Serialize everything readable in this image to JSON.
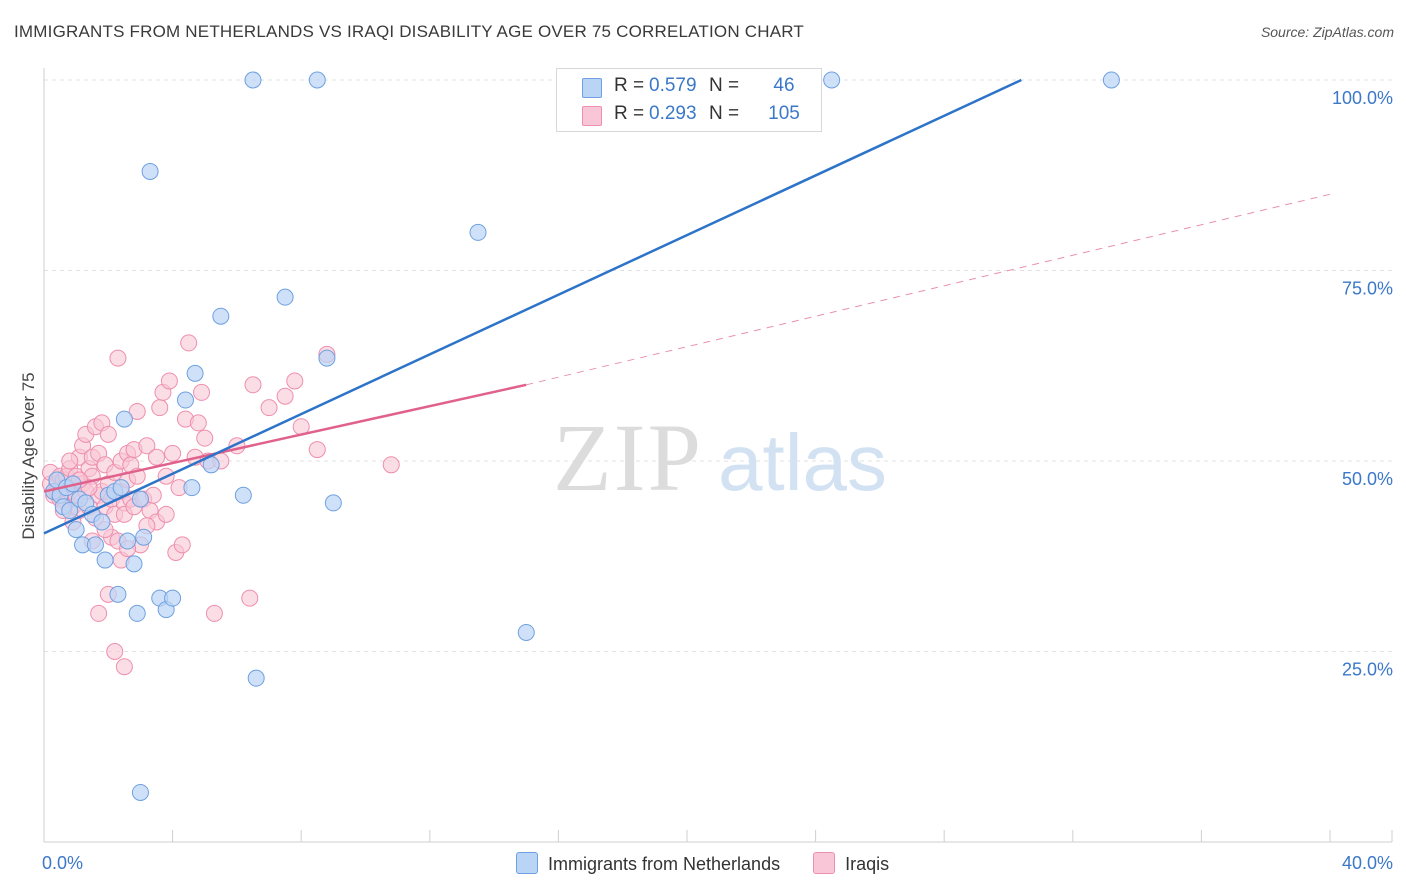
{
  "title": "IMMIGRANTS FROM NETHERLANDS VS IRAQI DISABILITY AGE OVER 75 CORRELATION CHART",
  "source": "Source: ZipAtlas.com",
  "watermark": {
    "zip": "ZIP",
    "atlas": "atlas"
  },
  "colors": {
    "blue_fill": "#bad4f5",
    "blue_stroke": "#6fa0e0",
    "blue_line": "#2d74c9",
    "pink_fill": "#f8c6d6",
    "pink_stroke": "#ee8fae",
    "pink_line": "#e0628c",
    "axis_text": "#3b78c8",
    "grid": "#e2e2e2"
  },
  "legend_top": [
    {
      "r_label": "R =",
      "r_value": "0.579",
      "n_label": "N =",
      "n_value": "46",
      "color": "#bad4f5",
      "border": "#6fa0e0"
    },
    {
      "r_label": "R =",
      "r_value": "0.293",
      "n_label": "N =",
      "n_value": "105",
      "color": "#f8c6d6",
      "border": "#ee8fae"
    }
  ],
  "legend_bottom": [
    {
      "label": "Immigrants from Netherlands",
      "color": "#bad4f5",
      "border": "#6fa0e0"
    },
    {
      "label": "Iraqis",
      "color": "#f8c6d6",
      "border": "#ee8fae"
    }
  ],
  "chart_data": {
    "type": "scatter",
    "title": "IMMIGRANTS FROM NETHERLANDS VS IRAQI DISABILITY AGE OVER 75 CORRELATION CHART",
    "xlabel": "",
    "ylabel": "Disability Age Over 75",
    "xlim": [
      0,
      40
    ],
    "ylim": [
      0,
      100
    ],
    "x_tick_labels": [
      "0.0%",
      "40.0%"
    ],
    "y_tick_labels": [
      "25.0%",
      "50.0%",
      "75.0%",
      "100.0%"
    ],
    "y_ticks": [
      25,
      50,
      75,
      100
    ],
    "grid": true,
    "series": [
      {
        "name": "Immigrants from Netherlands",
        "color": "#bad4f5",
        "points": [
          [
            0.3,
            46.0
          ],
          [
            0.4,
            47.5
          ],
          [
            0.5,
            45.5
          ],
          [
            0.6,
            44.0
          ],
          [
            0.7,
            46.5
          ],
          [
            0.8,
            43.5
          ],
          [
            0.9,
            47.0
          ],
          [
            1.0,
            41.0
          ],
          [
            1.1,
            45.0
          ],
          [
            1.2,
            39.0
          ],
          [
            1.3,
            44.5
          ],
          [
            1.5,
            43.0
          ],
          [
            1.6,
            39.0
          ],
          [
            1.8,
            42.0
          ],
          [
            1.9,
            37.0
          ],
          [
            2.0,
            45.5
          ],
          [
            2.2,
            46.0
          ],
          [
            2.3,
            32.5
          ],
          [
            2.4,
            46.5
          ],
          [
            2.5,
            55.5
          ],
          [
            2.6,
            39.5
          ],
          [
            2.8,
            36.5
          ],
          [
            2.9,
            30.0
          ],
          [
            3.0,
            45.0
          ],
          [
            3.1,
            40.0
          ],
          [
            3.3,
            88.0
          ],
          [
            3.6,
            32.0
          ],
          [
            3.8,
            30.5
          ],
          [
            4.0,
            32.0
          ],
          [
            4.4,
            58.0
          ],
          [
            4.6,
            46.5
          ],
          [
            4.7,
            61.5
          ],
          [
            5.2,
            49.5
          ],
          [
            5.5,
            69.0
          ],
          [
            6.2,
            45.5
          ],
          [
            6.5,
            100.0
          ],
          [
            6.6,
            21.5
          ],
          [
            7.5,
            71.5
          ],
          [
            8.5,
            100.0
          ],
          [
            8.8,
            63.5
          ],
          [
            9.0,
            44.5
          ],
          [
            3.0,
            6.5
          ],
          [
            13.5,
            80.0
          ],
          [
            15.0,
            27.5
          ],
          [
            24.5,
            100.0
          ],
          [
            33.2,
            100.0
          ]
        ],
        "trend": {
          "x": [
            0,
            30.4
          ],
          "y": [
            40.5,
            100
          ]
        }
      },
      {
        "name": "Iraqis",
        "color": "#f8c6d6",
        "points": [
          [
            0.2,
            47.0
          ],
          [
            0.2,
            48.5
          ],
          [
            0.3,
            46.0
          ],
          [
            0.3,
            45.5
          ],
          [
            0.4,
            47.0
          ],
          [
            0.4,
            46.0
          ],
          [
            0.5,
            48.0
          ],
          [
            0.5,
            45.0
          ],
          [
            0.6,
            46.5
          ],
          [
            0.6,
            47.5
          ],
          [
            0.7,
            44.5
          ],
          [
            0.7,
            48.0
          ],
          [
            0.8,
            46.0
          ],
          [
            0.8,
            49.0
          ],
          [
            0.9,
            47.0
          ],
          [
            0.9,
            44.0
          ],
          [
            1.0,
            48.0
          ],
          [
            1.0,
            45.5
          ],
          [
            1.1,
            50.5
          ],
          [
            1.1,
            43.5
          ],
          [
            1.2,
            52.0
          ],
          [
            1.2,
            47.0
          ],
          [
            1.3,
            46.0
          ],
          [
            1.3,
            53.5
          ],
          [
            1.4,
            49.0
          ],
          [
            1.4,
            44.0
          ],
          [
            1.5,
            50.5
          ],
          [
            1.5,
            48.0
          ],
          [
            1.6,
            54.5
          ],
          [
            1.6,
            42.5
          ],
          [
            1.7,
            45.5
          ],
          [
            1.7,
            51.0
          ],
          [
            1.8,
            55.0
          ],
          [
            1.8,
            46.0
          ],
          [
            1.9,
            49.5
          ],
          [
            1.9,
            44.0
          ],
          [
            2.0,
            53.5
          ],
          [
            2.0,
            47.0
          ],
          [
            2.1,
            40.0
          ],
          [
            2.1,
            45.0
          ],
          [
            2.2,
            48.5
          ],
          [
            2.2,
            43.0
          ],
          [
            2.3,
            63.5
          ],
          [
            2.3,
            39.5
          ],
          [
            2.4,
            50.0
          ],
          [
            2.4,
            46.0
          ],
          [
            2.5,
            44.5
          ],
          [
            2.5,
            43.0
          ],
          [
            2.6,
            51.0
          ],
          [
            2.6,
            47.5
          ],
          [
            2.7,
            49.5
          ],
          [
            2.7,
            45.0
          ],
          [
            2.8,
            51.5
          ],
          [
            2.8,
            44.0
          ],
          [
            2.9,
            56.5
          ],
          [
            2.9,
            48.0
          ],
          [
            3.0,
            39.0
          ],
          [
            3.1,
            45.0
          ],
          [
            3.2,
            52.0
          ],
          [
            3.3,
            43.5
          ],
          [
            3.4,
            45.5
          ],
          [
            3.5,
            50.5
          ],
          [
            3.5,
            42.0
          ],
          [
            3.6,
            57.0
          ],
          [
            3.7,
            59.0
          ],
          [
            3.8,
            48.0
          ],
          [
            3.9,
            60.5
          ],
          [
            4.0,
            51.0
          ],
          [
            4.1,
            38.0
          ],
          [
            4.3,
            39.0
          ],
          [
            4.4,
            55.5
          ],
          [
            4.5,
            65.5
          ],
          [
            4.7,
            50.5
          ],
          [
            4.8,
            55.0
          ],
          [
            4.9,
            59.0
          ],
          [
            5.0,
            53.0
          ],
          [
            5.1,
            50.0
          ],
          [
            5.3,
            30.0
          ],
          [
            5.5,
            50.0
          ],
          [
            6.0,
            52.0
          ],
          [
            6.5,
            60.0
          ],
          [
            7.0,
            57.0
          ],
          [
            7.5,
            58.5
          ],
          [
            7.8,
            60.5
          ],
          [
            8.0,
            54.5
          ],
          [
            8.5,
            51.5
          ],
          [
            8.8,
            64.0
          ],
          [
            10.8,
            49.5
          ],
          [
            0.8,
            50.0
          ],
          [
            1.4,
            46.5
          ],
          [
            1.9,
            41.0
          ],
          [
            2.4,
            37.0
          ],
          [
            2.2,
            25.0
          ],
          [
            2.5,
            23.0
          ],
          [
            1.7,
            30.0
          ],
          [
            2.0,
            32.5
          ],
          [
            6.4,
            32.0
          ],
          [
            3.2,
            41.5
          ],
          [
            1.5,
            39.5
          ],
          [
            0.9,
            42.0
          ],
          [
            2.6,
            38.5
          ],
          [
            3.8,
            43.0
          ],
          [
            4.2,
            46.5
          ],
          [
            1.1,
            47.5
          ],
          [
            0.6,
            43.5
          ]
        ],
        "trend": {
          "x": [
            0,
            15.0
          ],
          "y": [
            46.0,
            60.0
          ]
        },
        "trend_dashed": {
          "x": [
            15.0,
            40
          ],
          "y": [
            60.0,
            85.0
          ]
        }
      }
    ]
  }
}
